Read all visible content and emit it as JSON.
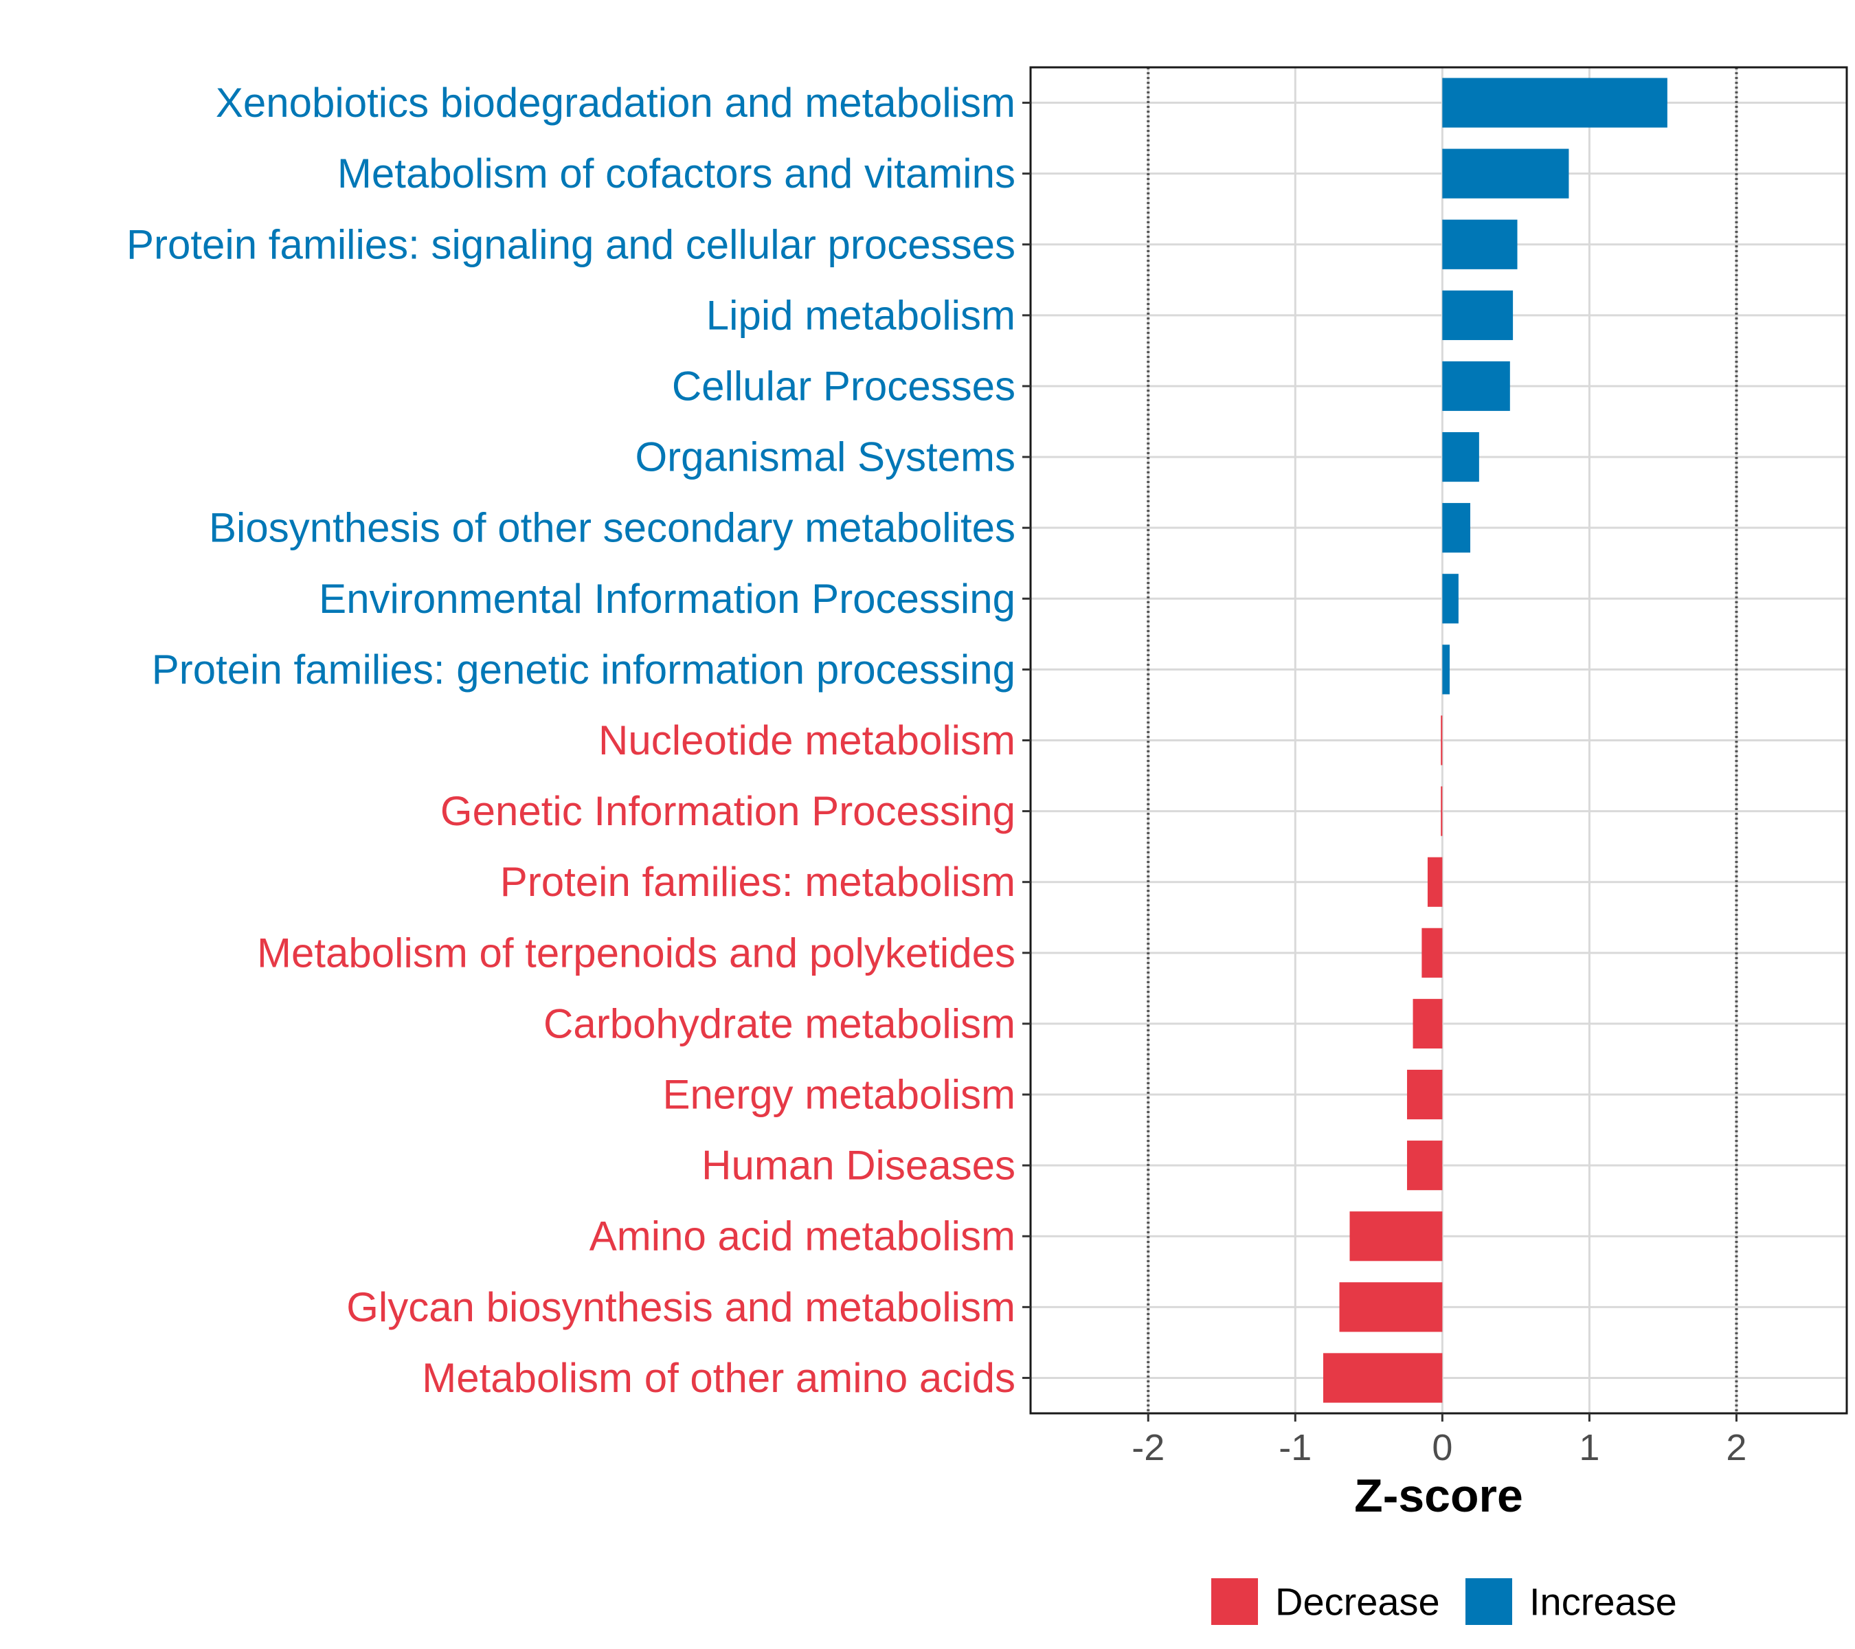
{
  "chart_data": {
    "type": "bar",
    "orientation": "horizontal",
    "title": "",
    "xlabel": "Z-score",
    "ylabel": "",
    "xlim": [
      -2.8,
      2.75
    ],
    "x_ticks": [
      -2,
      -1,
      0,
      1,
      2
    ],
    "x_tick_labels": [
      "-2",
      "-1",
      "0",
      "1",
      "2"
    ],
    "reference_lines": [
      -2,
      2
    ],
    "grid": true,
    "legend_position": "bottom",
    "colors": {
      "Decrease": "#E63946",
      "Increase": "#0077B6"
    },
    "categories": [
      "Xenobiotics biodegradation and metabolism",
      "Metabolism of cofactors and vitamins",
      "Protein families: signaling and cellular processes",
      "Lipid metabolism",
      "Cellular Processes",
      "Organismal Systems",
      "Biosynthesis of other secondary metabolites",
      "Environmental Information Processing",
      "Protein families: genetic information processing",
      "Nucleotide metabolism",
      "Genetic Information Processing",
      "Protein families: metabolism",
      "Metabolism of terpenoids and polyketides",
      "Carbohydrate metabolism",
      "Energy metabolism",
      "Human Diseases",
      "Amino acid metabolism",
      "Glycan biosynthesis and metabolism",
      "Metabolism of other amino acids"
    ],
    "values": [
      1.53,
      0.86,
      0.51,
      0.48,
      0.46,
      0.25,
      0.19,
      0.11,
      0.05,
      -0.01,
      -0.01,
      -0.1,
      -0.14,
      -0.2,
      -0.24,
      -0.24,
      -0.63,
      -0.7,
      -0.81
    ],
    "groups": [
      "Increase",
      "Increase",
      "Increase",
      "Increase",
      "Increase",
      "Increase",
      "Increase",
      "Increase",
      "Increase",
      "Decrease",
      "Decrease",
      "Decrease",
      "Decrease",
      "Decrease",
      "Decrease",
      "Decrease",
      "Decrease",
      "Decrease",
      "Decrease"
    ],
    "legend": [
      "Decrease",
      "Increase"
    ]
  }
}
